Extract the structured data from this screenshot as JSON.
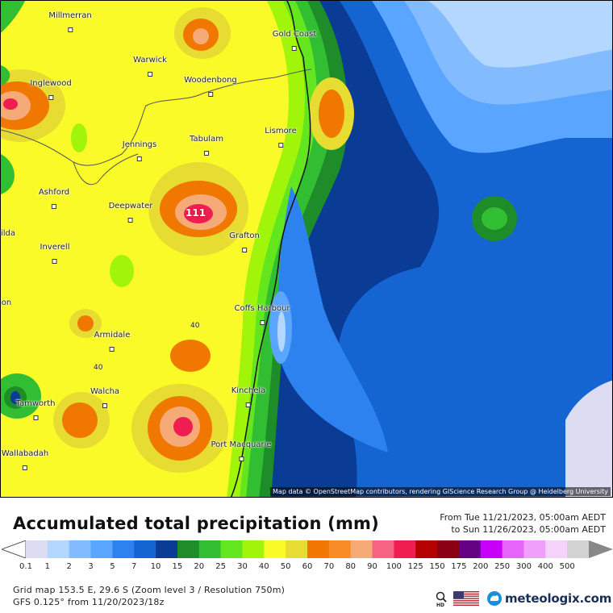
{
  "map": {
    "title": "Accumulated total precipitation (mm)",
    "period_from": "From Tue 11/21/2023, 05:00am AEDT",
    "period_to": "to Sun 11/26/2023, 05:00am AEDT",
    "grid_info": "Grid map 153.5 E, 29.6 S (Zoom level 3 / Resolution 750m)",
    "model_info": "GFS 0.125° from  11/20/2023/18z",
    "attribution": "Map data © OpenStreetMap contributors, rendering GIScience Research Group @ Heidelberg University",
    "max_value_label": "111",
    "contour_labels": [
      "40",
      "40"
    ],
    "cities": [
      {
        "name": "Millmerran"
      },
      {
        "name": "Gold Coast"
      },
      {
        "name": "Warwick"
      },
      {
        "name": "Inglewood"
      },
      {
        "name": "Woodenbong"
      },
      {
        "name": "Lismore"
      },
      {
        "name": "Tabulam"
      },
      {
        "name": "Jennings"
      },
      {
        "name": "Ashford"
      },
      {
        "name": "Deepwater"
      },
      {
        "name": "Grafton"
      },
      {
        "name": "Inverell"
      },
      {
        "name": "Coffs Harbour"
      },
      {
        "name": "Armidale"
      },
      {
        "name": "Walcha"
      },
      {
        "name": "Kinchela"
      },
      {
        "name": "Tamworth"
      },
      {
        "name": "Port Macquarie"
      },
      {
        "name": "Wallabadah"
      },
      {
        "name": "ilda"
      },
      {
        "name": "on"
      }
    ]
  },
  "legend": {
    "values": [
      "0.1",
      "1",
      "2",
      "3",
      "5",
      "7",
      "10",
      "15",
      "20",
      "25",
      "30",
      "40",
      "50",
      "60",
      "70",
      "80",
      "90",
      "100",
      "125",
      "150",
      "175",
      "200",
      "250",
      "300",
      "400",
      "500"
    ],
    "colors": [
      "#dcdcf2",
      "#b4d7ff",
      "#82bcff",
      "#5aa5ff",
      "#2e82f0",
      "#1464d2",
      "#0a3c96",
      "#1e8c28",
      "#32be32",
      "#64e61e",
      "#a0f50a",
      "#fafa28",
      "#e6dc32",
      "#f07800",
      "#fa8c28",
      "#f5aa78",
      "#f56482",
      "#f01e50",
      "#b40000",
      "#8c0014",
      "#640082",
      "#c800fa",
      "#e664fa",
      "#f0a0fa",
      "#f5d2fa",
      "#d2d2d2"
    ]
  },
  "brand": {
    "name": "meteologix.com",
    "flag_icon": "us-flag-icon",
    "hd_icon": "hd-magnifier-icon"
  }
}
